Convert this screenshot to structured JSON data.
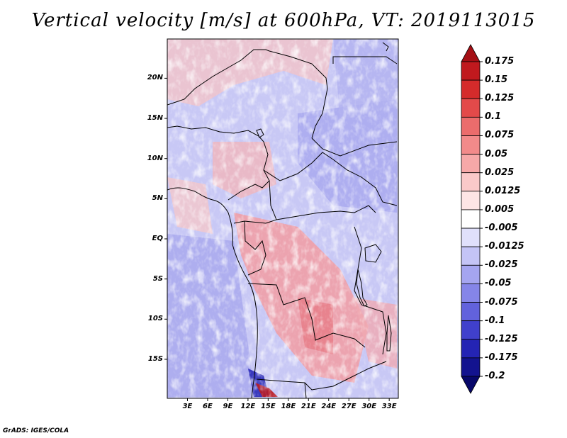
{
  "title": "Vertical velocity [m/s] at 600hPa, VT: 2019113015",
  "footer": "GrADS: IGES/COLA",
  "map": {
    "region": "Central Africa",
    "variable": "Vertical velocity",
    "units": "m/s",
    "level": "600hPa",
    "valid_time": "2019113015",
    "lat_range": [
      -20,
      25
    ],
    "lon_range": [
      0,
      35
    ],
    "lat_labels": [
      {
        "value": 20,
        "label": "20N"
      },
      {
        "value": 15,
        "label": "15N"
      },
      {
        "value": 10,
        "label": "10N"
      },
      {
        "value": 5,
        "label": "5N"
      },
      {
        "value": 0,
        "label": "EQ"
      },
      {
        "value": -5,
        "label": "5S"
      },
      {
        "value": -10,
        "label": "10S"
      },
      {
        "value": -15,
        "label": "15S"
      }
    ],
    "lon_labels": [
      {
        "value": 3,
        "label": "3E"
      },
      {
        "value": 6,
        "label": "6E"
      },
      {
        "value": 9,
        "label": "9E"
      },
      {
        "value": 12,
        "label": "12E"
      },
      {
        "value": 15,
        "label": "15E"
      },
      {
        "value": 18,
        "label": "18E"
      },
      {
        "value": 21,
        "label": "21E"
      },
      {
        "value": 24,
        "label": "24E"
      },
      {
        "value": 27,
        "label": "27E"
      },
      {
        "value": 30,
        "label": "30E"
      },
      {
        "value": 33,
        "label": "33E"
      }
    ]
  },
  "colorbar": {
    "labels": [
      "0.175",
      "0.15",
      "0.125",
      "0.1",
      "0.075",
      "0.05",
      "0.025",
      "0.0125",
      "0.005",
      "-0.005",
      "-0.0125",
      "-0.025",
      "-0.05",
      "-0.075",
      "-0.1",
      "-0.125",
      "-0.175",
      "-0.2"
    ],
    "colors": [
      "#a50f15",
      "#c0191e",
      "#d42b2b",
      "#e34a4a",
      "#eb6c6c",
      "#f28a8a",
      "#f6a8a8",
      "#fac9c9",
      "#fde5e5",
      "#ffffff",
      "#e0e0fb",
      "#c4c4f6",
      "#a5a5f0",
      "#8585e8",
      "#6262dc",
      "#4040cc",
      "#2424b4",
      "#13138f",
      "#08086a"
    ]
  }
}
